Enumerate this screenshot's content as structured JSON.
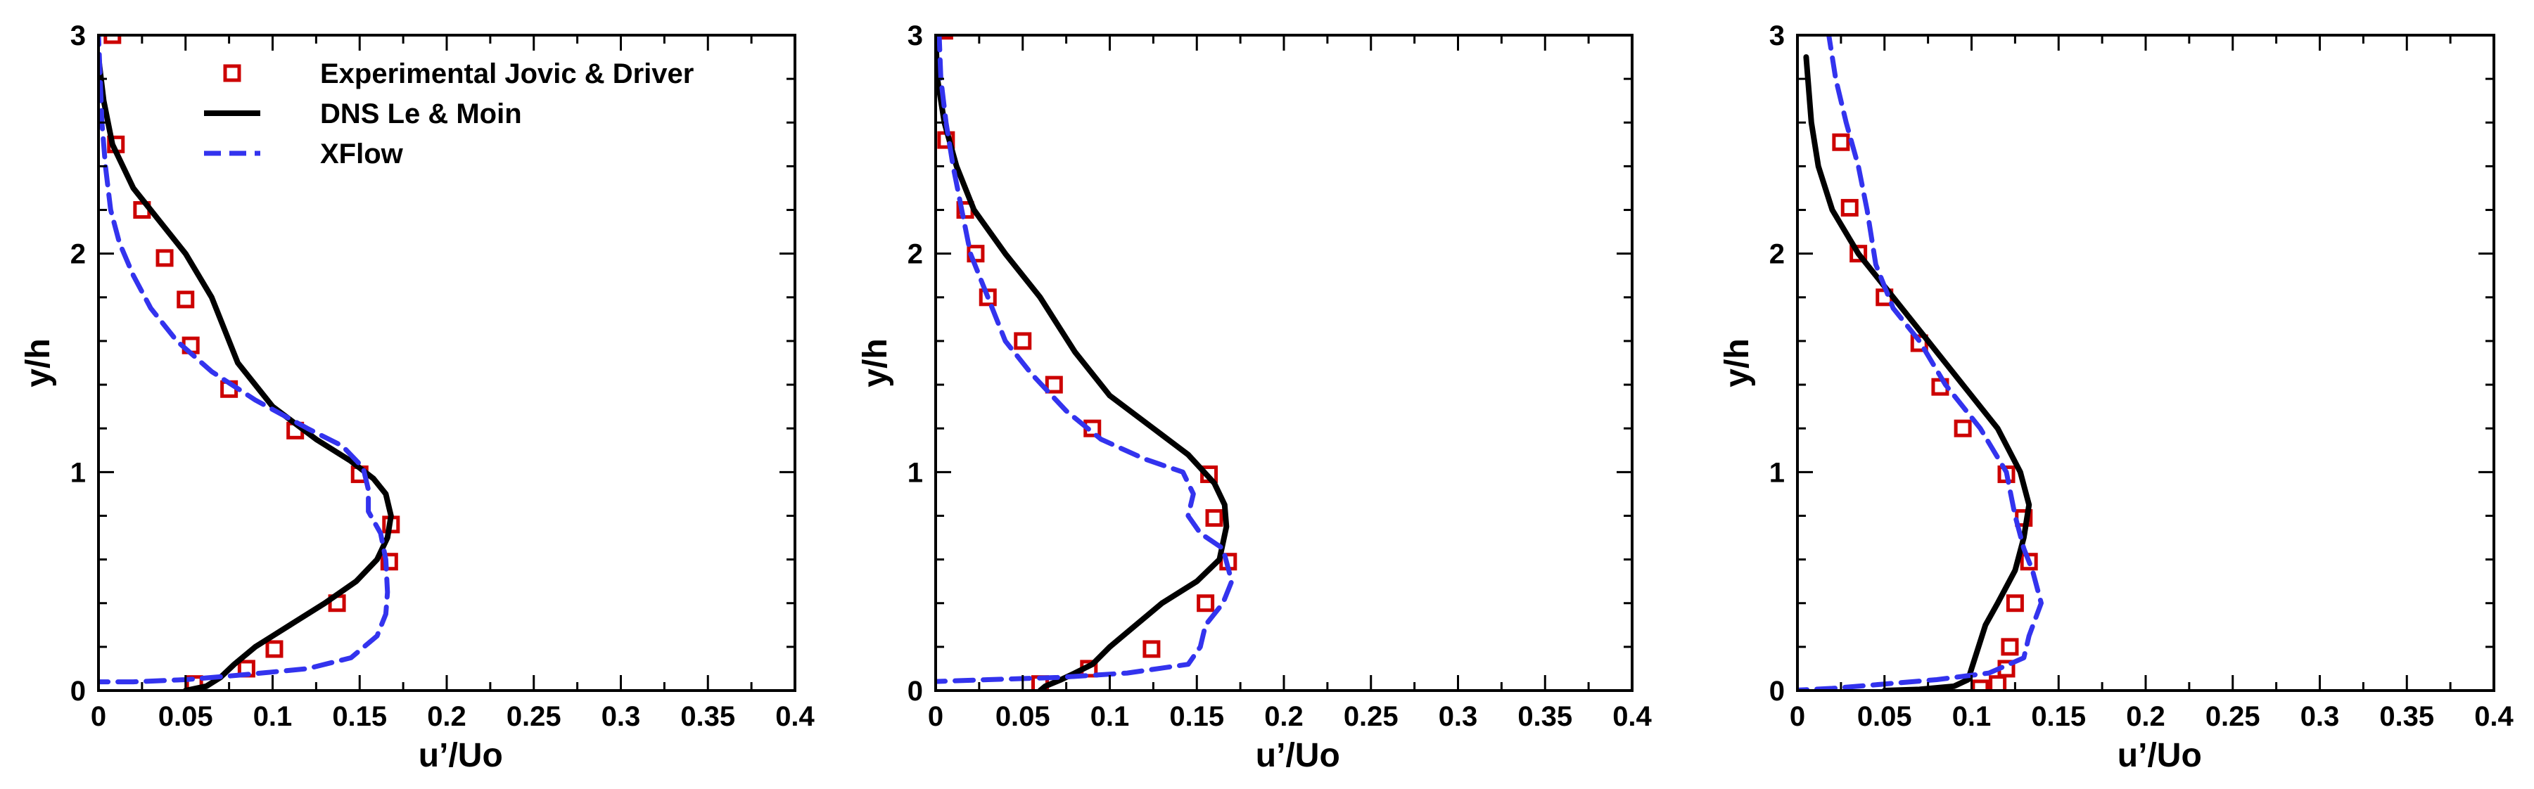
{
  "colors": {
    "experimental": "#cc0000",
    "dns": "#000000",
    "xflow": "#3333ee",
    "axis": "#000000"
  },
  "legend": {
    "entries": [
      {
        "key": "experimental",
        "label": "Experimental Jovic & Driver"
      },
      {
        "key": "dns",
        "label": "DNS Le & Moin"
      },
      {
        "key": "xflow",
        "label": "XFlow"
      }
    ]
  },
  "chart_data": [
    {
      "type": "line",
      "xlabel": "u’/Uo",
      "ylabel": "y/h",
      "xlim": [
        0,
        0.4
      ],
      "ylim": [
        0,
        3
      ],
      "xticks": [
        "0",
        "0.05",
        "0.1",
        "0.15",
        "0.2",
        "0.25",
        "0.3",
        "0.35",
        "0.4"
      ],
      "yticks": [
        "0",
        "1",
        "2",
        "3"
      ],
      "series": [
        {
          "name": "Experimental Jovic & Driver",
          "key": "experimental",
          "style": "markers",
          "points": [
            [
              0.008,
              3.0
            ],
            [
              0.01,
              2.5
            ],
            [
              0.025,
              2.2
            ],
            [
              0.038,
              1.98
            ],
            [
              0.05,
              1.79
            ],
            [
              0.053,
              1.58
            ],
            [
              0.075,
              1.38
            ],
            [
              0.113,
              1.19
            ],
            [
              0.15,
              0.99
            ],
            [
              0.168,
              0.76
            ],
            [
              0.167,
              0.59
            ],
            [
              0.137,
              0.4
            ],
            [
              0.101,
              0.19
            ],
            [
              0.085,
              0.1
            ],
            [
              0.055,
              0.03
            ]
          ]
        },
        {
          "name": "DNS Le & Moin",
          "key": "dns",
          "style": "solid",
          "points": [
            [
              0.0,
              2.9
            ],
            [
              0.003,
              2.7
            ],
            [
              0.008,
              2.5
            ],
            [
              0.02,
              2.3
            ],
            [
              0.035,
              2.15
            ],
            [
              0.05,
              2.0
            ],
            [
              0.065,
              1.8
            ],
            [
              0.08,
              1.5
            ],
            [
              0.1,
              1.3
            ],
            [
              0.125,
              1.15
            ],
            [
              0.145,
              1.05
            ],
            [
              0.158,
              0.97
            ],
            [
              0.165,
              0.9
            ],
            [
              0.168,
              0.8
            ],
            [
              0.166,
              0.7
            ],
            [
              0.16,
              0.6
            ],
            [
              0.148,
              0.5
            ],
            [
              0.13,
              0.4
            ],
            [
              0.11,
              0.3
            ],
            [
              0.09,
              0.2
            ],
            [
              0.078,
              0.12
            ],
            [
              0.07,
              0.06
            ],
            [
              0.062,
              0.02
            ],
            [
              0.05,
              0.0
            ]
          ]
        },
        {
          "name": "XFlow",
          "key": "xflow",
          "style": "dashed",
          "points": [
            [
              -0.005,
              0.04
            ],
            [
              0.02,
              0.04
            ],
            [
              0.05,
              0.05
            ],
            [
              0.08,
              0.07
            ],
            [
              0.12,
              0.1
            ],
            [
              0.145,
              0.15
            ],
            [
              0.16,
              0.25
            ],
            [
              0.165,
              0.35
            ],
            [
              0.166,
              0.45
            ],
            [
              0.165,
              0.6
            ],
            [
              0.162,
              0.72
            ],
            [
              0.155,
              0.82
            ],
            [
              0.155,
              0.92
            ],
            [
              0.152,
              1.02
            ],
            [
              0.14,
              1.12
            ],
            [
              0.12,
              1.2
            ],
            [
              0.09,
              1.33
            ],
            [
              0.065,
              1.46
            ],
            [
              0.045,
              1.6
            ],
            [
              0.03,
              1.75
            ],
            [
              0.02,
              1.9
            ],
            [
              0.012,
              2.05
            ],
            [
              0.007,
              2.2
            ],
            [
              0.004,
              2.4
            ],
            [
              0.002,
              2.6
            ],
            [
              0.001,
              2.8
            ],
            [
              0.0,
              3.0
            ]
          ]
        }
      ]
    },
    {
      "type": "line",
      "xlabel": "u’/Uo",
      "ylabel": "y/h",
      "xlim": [
        0,
        0.4
      ],
      "ylim": [
        0,
        3
      ],
      "xticks": [
        "0",
        "0.05",
        "0.1",
        "0.15",
        "0.2",
        "0.25",
        "0.3",
        "0.35",
        "0.4"
      ],
      "yticks": [
        "0",
        "1",
        "2",
        "3"
      ],
      "series": [
        {
          "name": "Experimental Jovic & Driver",
          "key": "experimental",
          "style": "markers",
          "points": [
            [
              0.005,
              3.02
            ],
            [
              0.006,
              2.52
            ],
            [
              0.017,
              2.2
            ],
            [
              0.023,
              2.0
            ],
            [
              0.03,
              1.8
            ],
            [
              0.05,
              1.6
            ],
            [
              0.068,
              1.4
            ],
            [
              0.09,
              1.2
            ],
            [
              0.157,
              0.99
            ],
            [
              0.16,
              0.79
            ],
            [
              0.168,
              0.59
            ],
            [
              0.155,
              0.4
            ],
            [
              0.124,
              0.19
            ],
            [
              0.088,
              0.1
            ],
            [
              0.06,
              0.03
            ]
          ]
        },
        {
          "name": "DNS Le & Moin",
          "key": "dns",
          "style": "solid",
          "points": [
            [
              0.0,
              3.0
            ],
            [
              0.001,
              2.8
            ],
            [
              0.005,
              2.6
            ],
            [
              0.012,
              2.4
            ],
            [
              0.022,
              2.2
            ],
            [
              0.04,
              2.0
            ],
            [
              0.06,
              1.8
            ],
            [
              0.08,
              1.55
            ],
            [
              0.1,
              1.35
            ],
            [
              0.125,
              1.2
            ],
            [
              0.145,
              1.08
            ],
            [
              0.16,
              0.95
            ],
            [
              0.166,
              0.85
            ],
            [
              0.167,
              0.75
            ],
            [
              0.163,
              0.6
            ],
            [
              0.15,
              0.5
            ],
            [
              0.13,
              0.4
            ],
            [
              0.115,
              0.3
            ],
            [
              0.1,
              0.2
            ],
            [
              0.09,
              0.12
            ],
            [
              0.08,
              0.08
            ],
            [
              0.072,
              0.05
            ],
            [
              0.063,
              0.02
            ],
            [
              0.06,
              0.0
            ]
          ]
        },
        {
          "name": "XFlow",
          "key": "xflow",
          "style": "dashed",
          "points": [
            [
              -0.005,
              0.04
            ],
            [
              0.03,
              0.05
            ],
            [
              0.07,
              0.06
            ],
            [
              0.11,
              0.08
            ],
            [
              0.145,
              0.12
            ],
            [
              0.152,
              0.2
            ],
            [
              0.155,
              0.3
            ],
            [
              0.165,
              0.4
            ],
            [
              0.17,
              0.5
            ],
            [
              0.165,
              0.65
            ],
            [
              0.152,
              0.72
            ],
            [
              0.145,
              0.8
            ],
            [
              0.148,
              0.9
            ],
            [
              0.142,
              1.0
            ],
            [
              0.12,
              1.06
            ],
            [
              0.095,
              1.15
            ],
            [
              0.075,
              1.28
            ],
            [
              0.055,
              1.45
            ],
            [
              0.04,
              1.6
            ],
            [
              0.03,
              1.8
            ],
            [
              0.02,
              2.0
            ],
            [
              0.015,
              2.2
            ],
            [
              0.01,
              2.4
            ],
            [
              0.006,
              2.6
            ],
            [
              0.003,
              2.8
            ],
            [
              0.002,
              3.0
            ]
          ]
        }
      ]
    },
    {
      "type": "line",
      "xlabel": "u’/Uo",
      "ylabel": "y/h",
      "xlim": [
        0,
        0.4
      ],
      "ylim": [
        0,
        3
      ],
      "xticks": [
        "0",
        "0.05",
        "0.1",
        "0.15",
        "0.2",
        "0.25",
        "0.3",
        "0.35",
        "0.4"
      ],
      "yticks": [
        "0",
        "1",
        "2",
        "3"
      ],
      "series": [
        {
          "name": "Experimental Jovic & Driver",
          "key": "experimental",
          "style": "markers",
          "points": [
            [
              0.025,
              2.51
            ],
            [
              0.03,
              2.21
            ],
            [
              0.035,
              2.0
            ],
            [
              0.05,
              1.8
            ],
            [
              0.07,
              1.59
            ],
            [
              0.082,
              1.39
            ],
            [
              0.095,
              1.2
            ],
            [
              0.12,
              0.99
            ],
            [
              0.13,
              0.79
            ],
            [
              0.133,
              0.59
            ],
            [
              0.125,
              0.4
            ],
            [
              0.122,
              0.2
            ],
            [
              0.12,
              0.1
            ],
            [
              0.115,
              0.03
            ],
            [
              0.105,
              0.01
            ]
          ]
        },
        {
          "name": "DNS Le & Moin",
          "key": "dns",
          "style": "solid",
          "points": [
            [
              0.005,
              2.9
            ],
            [
              0.008,
              2.6
            ],
            [
              0.012,
              2.4
            ],
            [
              0.02,
              2.2
            ],
            [
              0.035,
              2.0
            ],
            [
              0.055,
              1.8
            ],
            [
              0.075,
              1.6
            ],
            [
              0.095,
              1.4
            ],
            [
              0.115,
              1.2
            ],
            [
              0.128,
              1.0
            ],
            [
              0.133,
              0.85
            ],
            [
              0.13,
              0.7
            ],
            [
              0.125,
              0.55
            ],
            [
              0.115,
              0.4
            ],
            [
              0.108,
              0.3
            ],
            [
              0.104,
              0.2
            ],
            [
              0.1,
              0.1
            ],
            [
              0.098,
              0.05
            ],
            [
              0.09,
              0.02
            ],
            [
              0.07,
              0.005
            ],
            [
              0.05,
              0.0
            ]
          ]
        },
        {
          "name": "XFlow",
          "key": "xflow",
          "style": "dashed",
          "points": [
            [
              -0.005,
              0.0
            ],
            [
              0.02,
              0.01
            ],
            [
              0.05,
              0.03
            ],
            [
              0.08,
              0.05
            ],
            [
              0.11,
              0.08
            ],
            [
              0.13,
              0.15
            ],
            [
              0.133,
              0.25
            ],
            [
              0.14,
              0.4
            ],
            [
              0.135,
              0.55
            ],
            [
              0.13,
              0.65
            ],
            [
              0.125,
              0.8
            ],
            [
              0.12,
              1.0
            ],
            [
              0.105,
              1.2
            ],
            [
              0.085,
              1.4
            ],
            [
              0.07,
              1.6
            ],
            [
              0.055,
              1.75
            ],
            [
              0.045,
              1.95
            ],
            [
              0.04,
              2.2
            ],
            [
              0.035,
              2.4
            ],
            [
              0.028,
              2.6
            ],
            [
              0.022,
              2.8
            ],
            [
              0.018,
              3.0
            ]
          ]
        }
      ]
    }
  ]
}
